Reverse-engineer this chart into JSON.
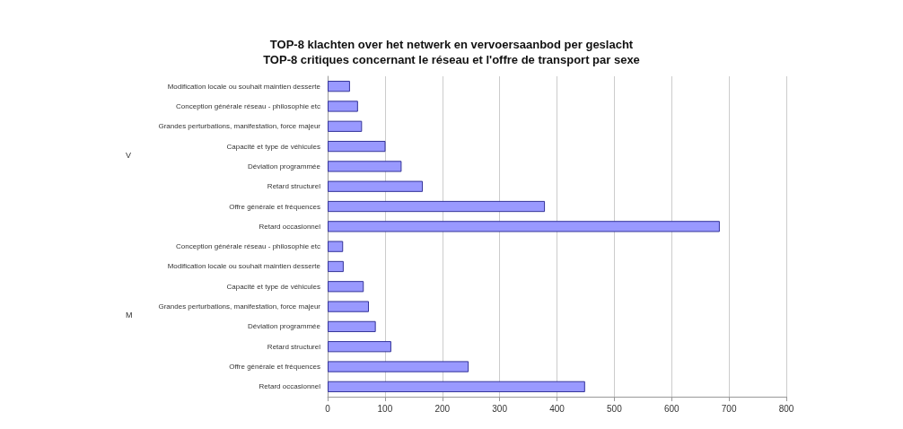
{
  "chart_data": {
    "type": "bar",
    "orientation": "horizontal",
    "title": "TOP-8 klachten over het netwerk en vervoersaanbod per geslacht",
    "subtitle": "TOP-8 critiques concernant le réseau et l'offre de transport par sexe",
    "categories": [
      "Modification locale ou souhait maintien desserte",
      "Conception générale réseau - philosophie etc",
      "Grandes perturbations, manifestation, force majeur",
      "Capacité et type de véhicules",
      "Déviation programmée",
      "Retard structurel",
      "Offre générale et fréquences",
      "Retard occasionnel",
      "Conception générale réseau - philosophie etc",
      "Modification locale ou souhait maintien desserte",
      "Capacité et type de véhicules",
      "Grandes perturbations, manifestation, force majeur",
      "Déviation programmée",
      "Retard structurel",
      "Offre générale et fréquences",
      "Retard occasionnel"
    ],
    "values": [
      39,
      53,
      60,
      101,
      129,
      166,
      379,
      684,
      27,
      28,
      63,
      72,
      84,
      111,
      246,
      449
    ],
    "color": "#9999ff",
    "xlim": [
      0,
      800
    ],
    "xticks": [
      0,
      100,
      200,
      300,
      400,
      500,
      600,
      700,
      800
    ],
    "grid": "x",
    "annotations": [
      "V",
      "M"
    ]
  }
}
